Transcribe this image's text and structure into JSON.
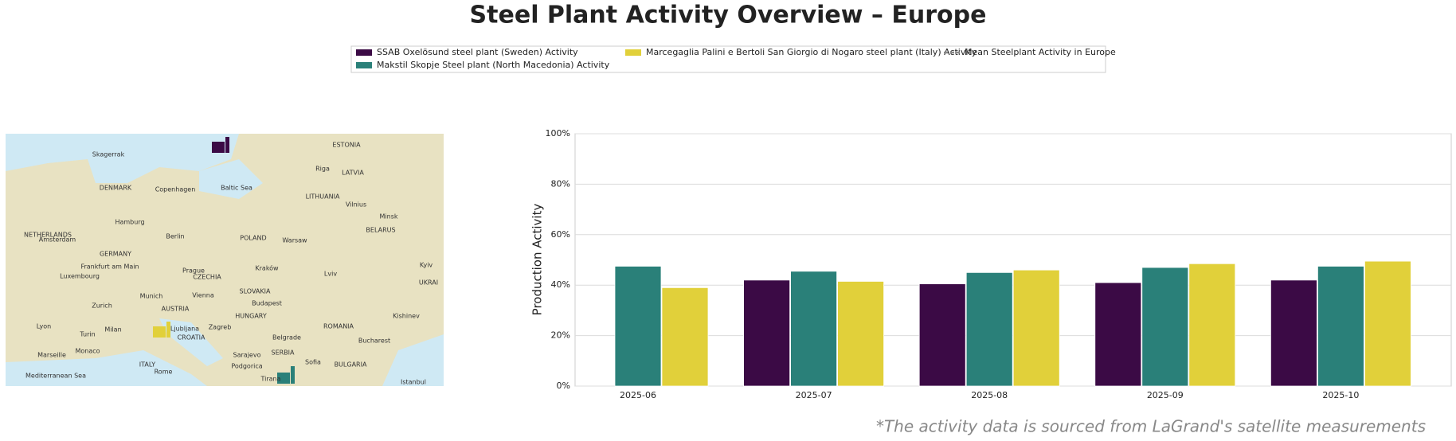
{
  "chart_data": {
    "type": "bar",
    "title": "Steel Plant Activity Overview – Europe",
    "y_label": "Production Activity",
    "footnote": "*The activity data is sourced from LaGrand's satellite measurements",
    "categories": [
      "2025-06",
      "2025-07",
      "2025-08",
      "2025-09",
      "2025-10"
    ],
    "series": [
      {
        "name": "SSAB Oxelösund steel plant (Sweden) Activity",
        "color": "#3b0a45",
        "values": [
          null,
          42,
          40.5,
          41,
          42
        ]
      },
      {
        "name": "Makstil Skopje Steel plant (North Macedonia) Activity",
        "color": "#2a8079",
        "values": [
          47.5,
          45.5,
          45,
          47,
          47.5
        ]
      },
      {
        "name": "Marcegaglia Palini e Bertoli San Giorgio di Nogaro steel plant (Italy) Activity",
        "color": "#e1d03a",
        "values": [
          39,
          41.5,
          46,
          48.5,
          49.5
        ]
      },
      {
        "name": "Mean Steelplant Activity in Europe",
        "color": "#888888",
        "dashed": true,
        "values": [
          null,
          null,
          null,
          null,
          null
        ]
      }
    ],
    "ylim": [
      0,
      100
    ],
    "yticks": [
      {
        "value": 0,
        "label": "0%"
      },
      {
        "value": 20,
        "label": "20%"
      },
      {
        "value": 40,
        "label": "40%"
      },
      {
        "value": 60,
        "label": "60%"
      },
      {
        "value": 80,
        "label": "80%"
      },
      {
        "value": 100,
        "label": "100%"
      }
    ],
    "grid": true,
    "map_labels": [
      "ESTONIA",
      "Riga",
      "LATVIA",
      "DENMARK",
      "Copenhagen",
      "LITHUANIA",
      "Vilnius",
      "Hamburg",
      "Minsk",
      "BELARUS",
      "Berlin",
      "POLAND",
      "Warsaw",
      "NETHERLANDS",
      "Amsterdam",
      "GERMANY",
      "Frankfurt am Main",
      "Prague",
      "CZECHIA",
      "Kraków",
      "Luxembourg",
      "Munich",
      "Vienna",
      "SLOVAKIA",
      "Budapest",
      "HUNGARY",
      "Zurich",
      "AUSTRIA",
      "Ljubljana",
      "Zagreb",
      "CROATIA",
      "Milan",
      "Belgrade",
      "ROMANIA",
      "Bucharest",
      "SERBIA",
      "Sarajevo",
      "ITALY",
      "Rome",
      "Sofia",
      "BULGARIA",
      "Podgorica",
      "Tirana",
      "Istanbul",
      "Marseille",
      "Monaco",
      "Mediterranean Sea",
      "Baltic Sea",
      "Skagerrak",
      "Kyiv",
      "UKRAI",
      "Kishinev",
      "Lyon",
      "Turin",
      "Lviv"
    ]
  }
}
